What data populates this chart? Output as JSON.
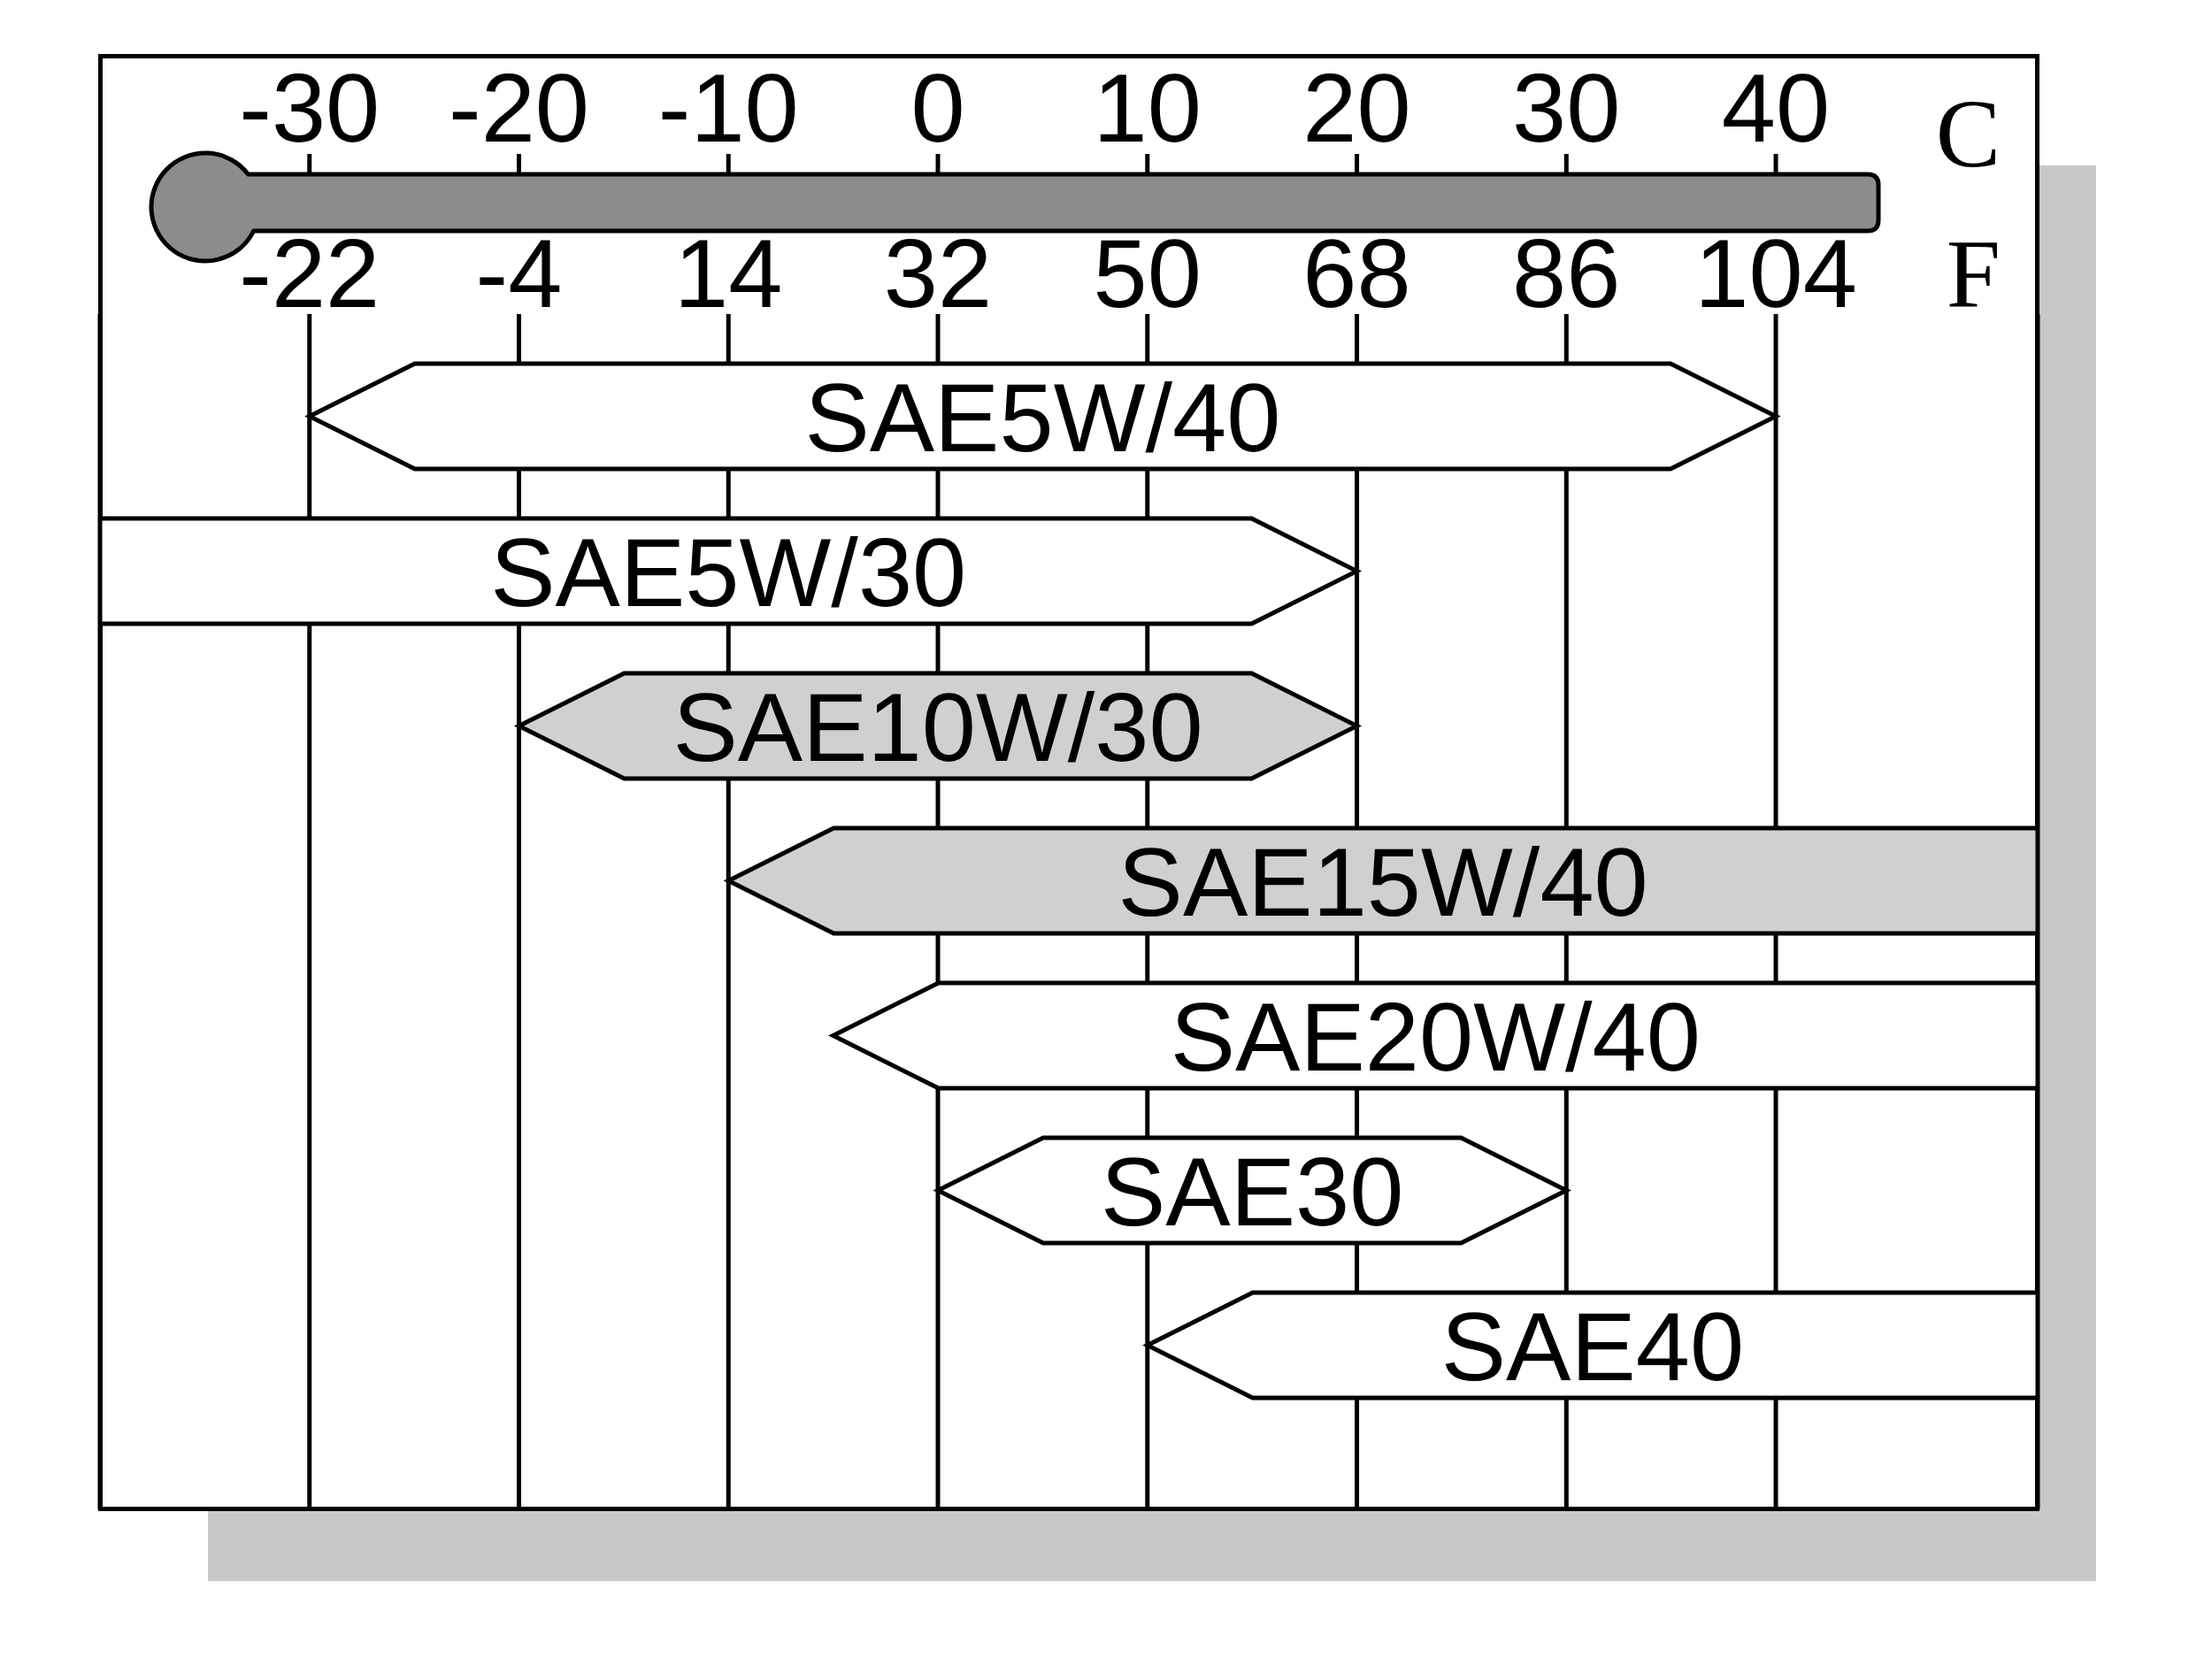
{
  "chart_data": {
    "type": "bar",
    "orientation": "horizontal",
    "categories": [
      "SAE5W/40",
      "SAE5W/30",
      "SAE10W/30",
      "SAE15W/40",
      "SAE20W/40",
      "SAE30",
      "SAE40"
    ],
    "base": [
      -30,
      -40,
      -20,
      -10,
      -5,
      0,
      10
    ],
    "values": [
      70,
      60,
      40,
      62.5,
      57.5,
      30,
      42.5
    ],
    "colors": [
      "#ffffff",
      "#ffffff",
      "#d0d0d0",
      "#d0d0d0",
      "#ffffff",
      "#ffffff",
      "#ffffff"
    ],
    "xlim": [
      -40,
      52.5
    ],
    "xticks": [
      -30,
      -20,
      -10,
      0,
      10,
      20,
      30,
      40
    ],
    "xlabel": "C",
    "x2lim": [
      -40,
      126.5
    ],
    "x2ticks": [
      -22,
      -4,
      14,
      32,
      50,
      68,
      86,
      104
    ],
    "x2label": "F",
    "grid": "x"
  }
}
